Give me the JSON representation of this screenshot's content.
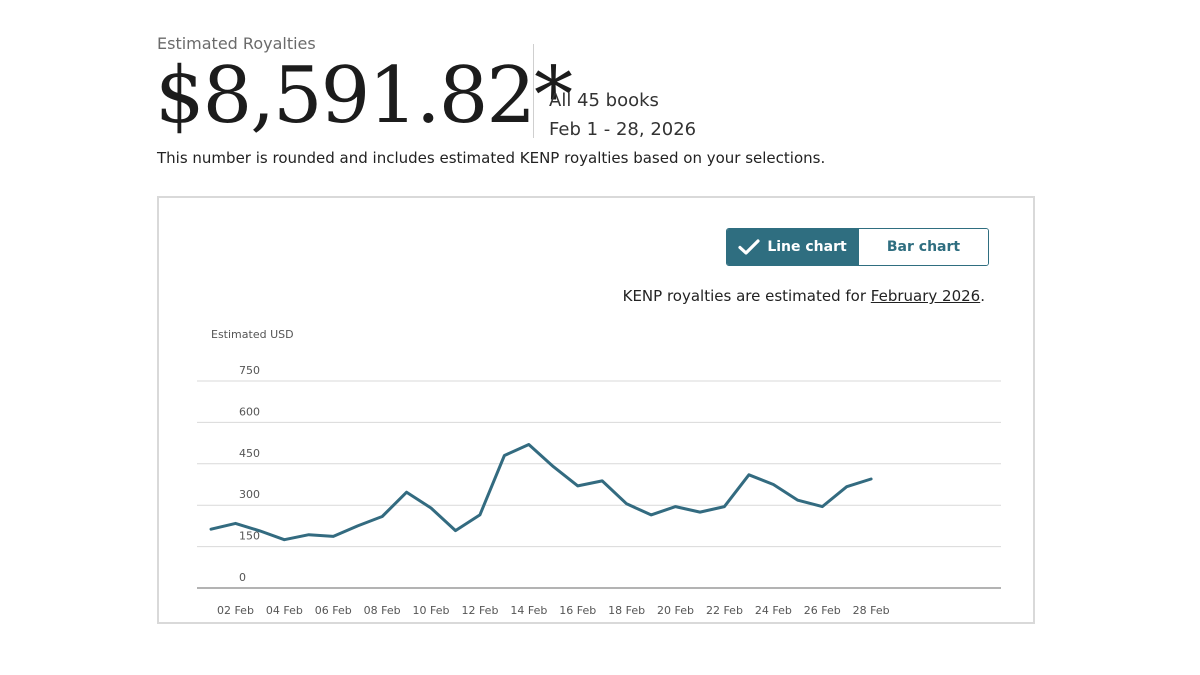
{
  "header": {
    "label": "Estimated Royalties",
    "amount": "$8,591.82*",
    "books": "All 45 books",
    "date_range": "Feb 1 - 28, 2026",
    "note": "This number is rounded and includes estimated KENP royalties based on your selections."
  },
  "toggle": {
    "line_label": "Line chart",
    "bar_label": "Bar chart",
    "selected": "line"
  },
  "kenp_note": {
    "prefix": "KENP royalties are estimated for ",
    "link": "February 2026",
    "suffix": "."
  },
  "colors": {
    "accent": "#2f6e80",
    "line": "#336b80",
    "grid": "#d9d9d9",
    "axis": "#9a9a9a"
  },
  "chart_data": {
    "type": "line",
    "ylabel": "Estimated USD",
    "xlabel": "",
    "title": "",
    "ylim": [
      0,
      750
    ],
    "yticks": [
      0,
      150,
      300,
      450,
      600,
      750
    ],
    "xlim": [
      1,
      28
    ],
    "x": [
      1,
      2,
      3,
      4,
      5,
      6,
      7,
      8,
      9,
      10,
      11,
      12,
      13,
      14,
      15,
      16,
      17,
      18,
      19,
      20,
      21,
      22,
      23,
      24,
      25,
      26,
      27,
      28
    ],
    "xtick_values": [
      2,
      4,
      6,
      8,
      10,
      12,
      14,
      16,
      18,
      20,
      22,
      24,
      26,
      28
    ],
    "xtick_labels": [
      "02 Feb",
      "04 Feb",
      "06 Feb",
      "08 Feb",
      "10 Feb",
      "12 Feb",
      "14 Feb",
      "16 Feb",
      "18 Feb",
      "20 Feb",
      "22 Feb",
      "24 Feb",
      "26 Feb",
      "28 Feb"
    ],
    "series": [
      {
        "values": [
          213,
          234,
          207,
          175,
          193,
          187,
          225,
          259,
          347,
          290,
          208,
          265,
          480,
          520,
          440,
          370,
          388,
          305,
          265,
          295,
          275,
          295,
          410,
          375,
          318,
          295,
          367,
          395
        ]
      }
    ],
    "grid": true,
    "legend": "none"
  }
}
